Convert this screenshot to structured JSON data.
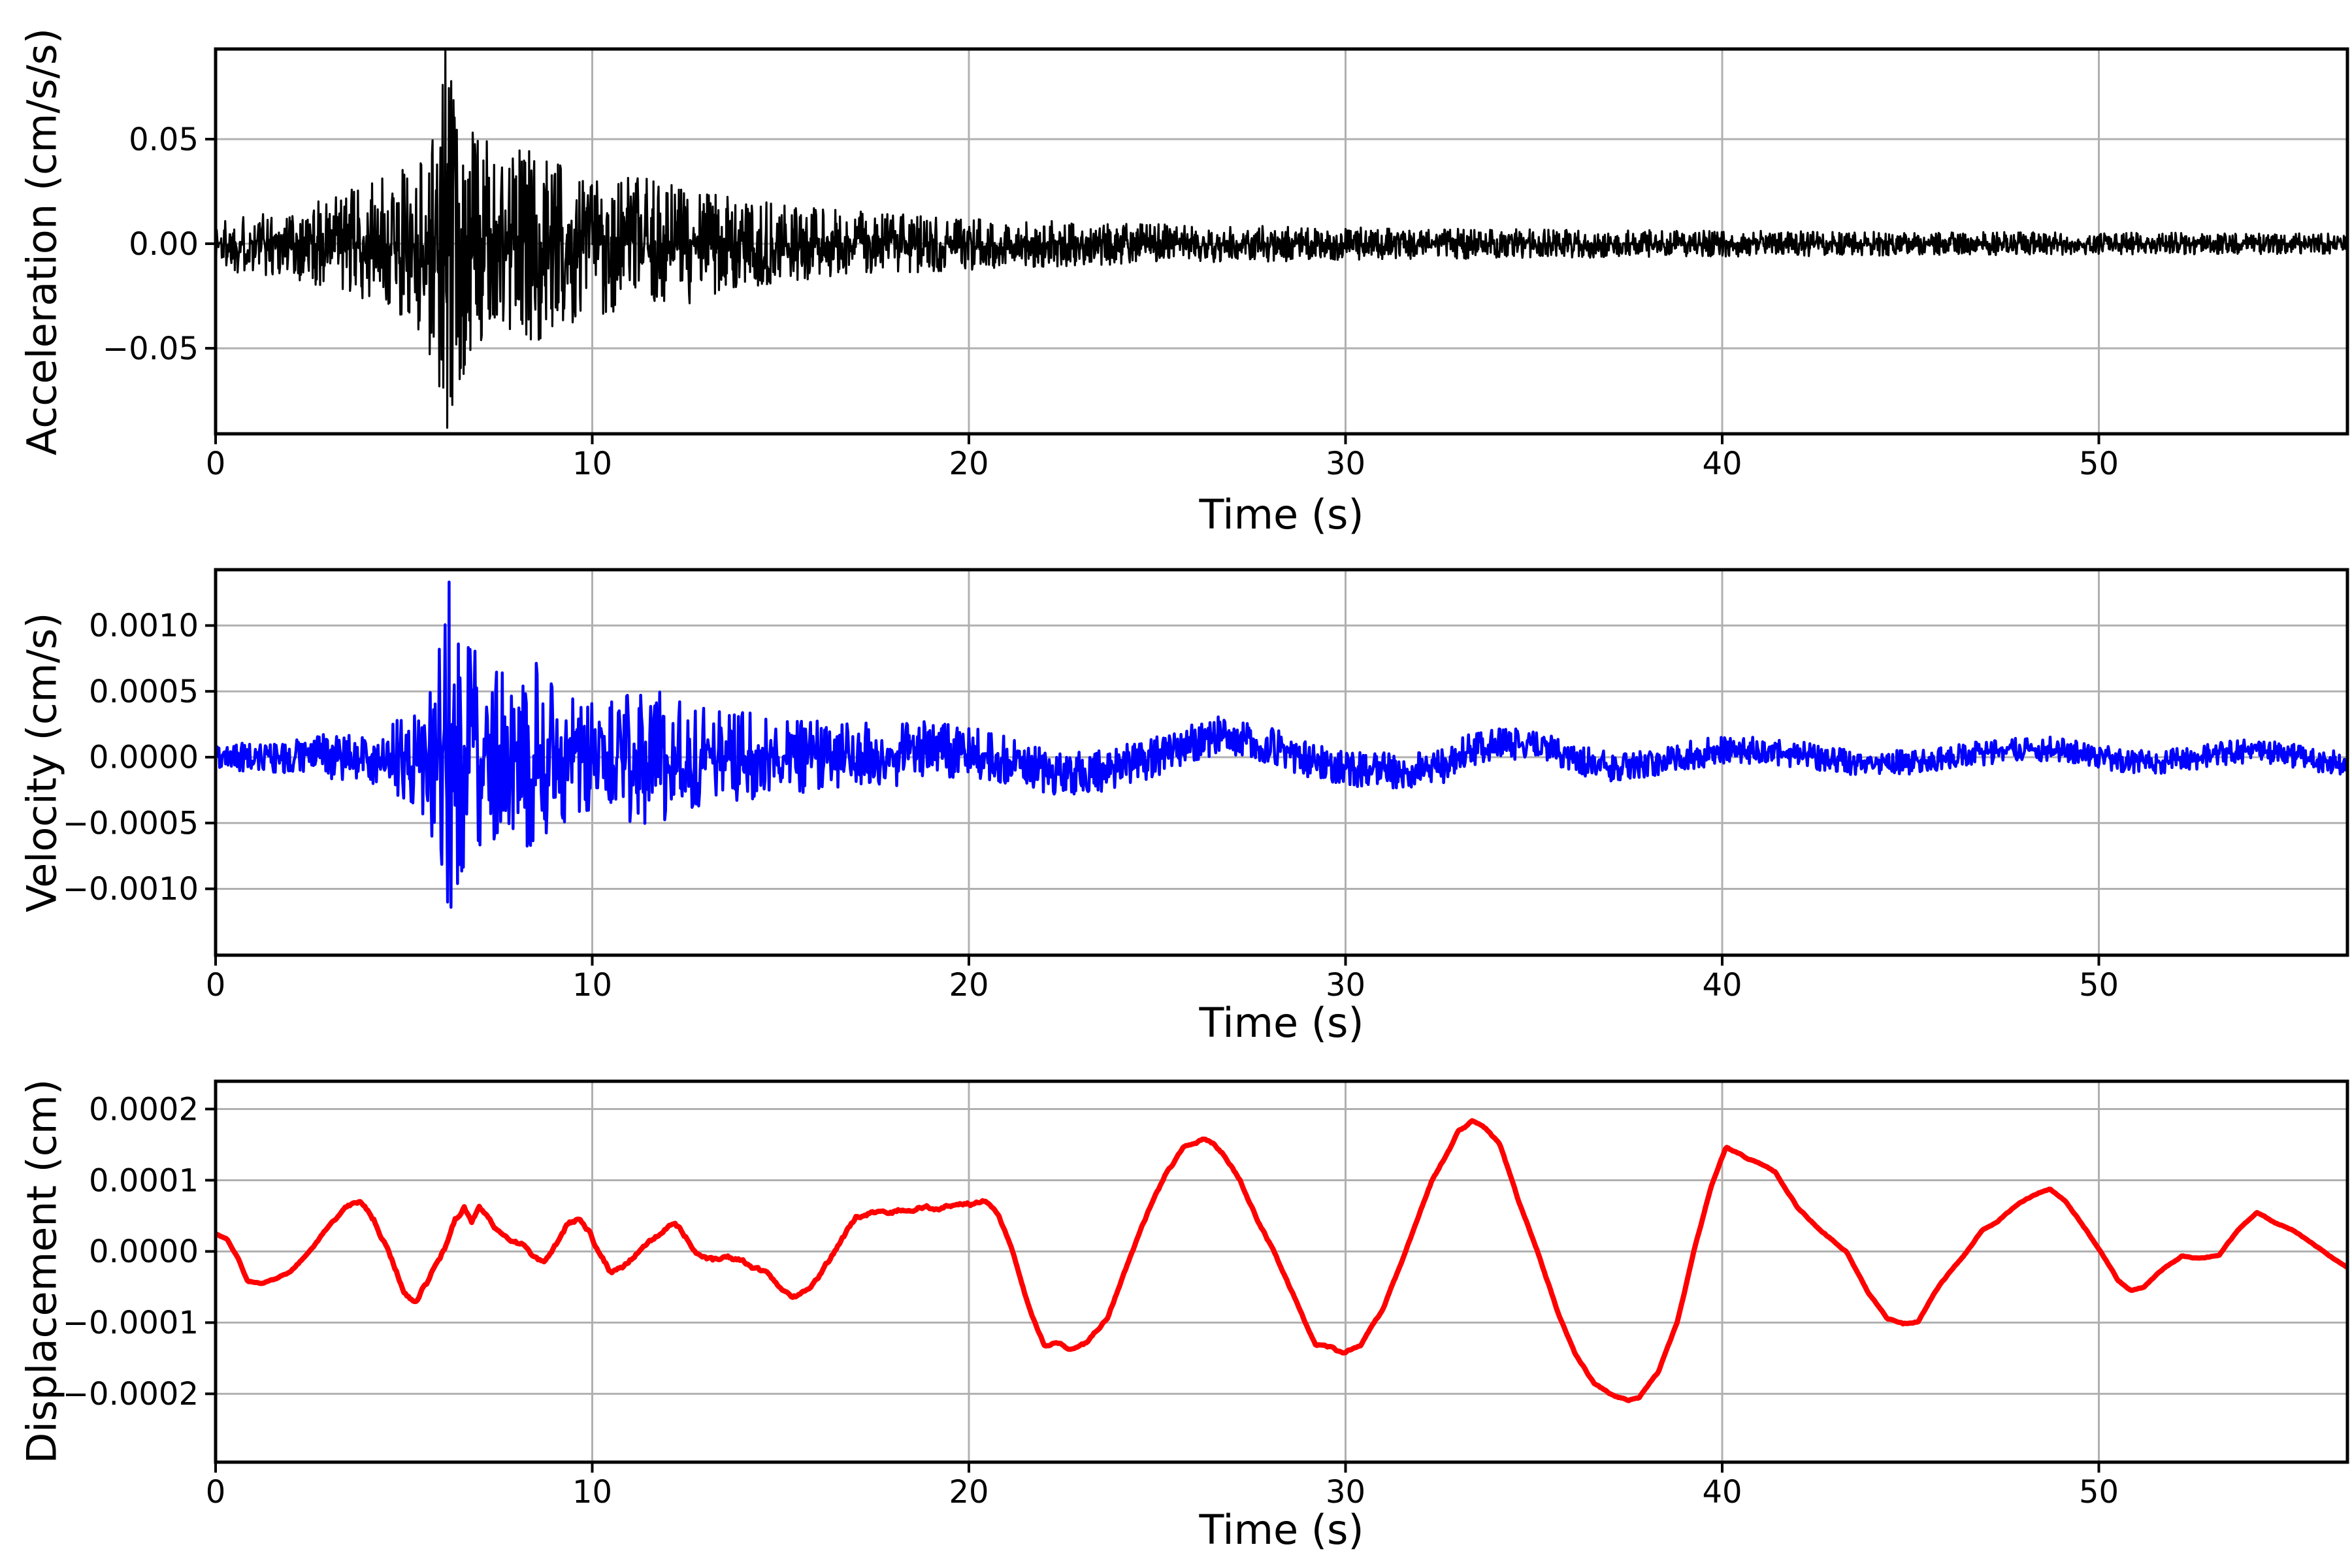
{
  "figure": {
    "background": "#ffffff",
    "description": "Three stacked seismogram panels: acceleration, velocity and displacement time histories of the same ground-motion record."
  },
  "chart_data": [
    {
      "type": "line",
      "series_name": "acceleration",
      "title": "",
      "xlabel": "Time (s)",
      "ylabel": "Acceleration (cm/s/s)",
      "color": "#000000",
      "line_width": 3.2,
      "grid": true,
      "grid_color": "#b0b0b0",
      "axis_color": "#000000",
      "legend_position": "none",
      "xlim": [
        0,
        56.6
      ],
      "ylim": [
        -0.0909,
        0.0931
      ],
      "xticks": [
        0,
        10,
        20,
        30,
        40,
        50
      ],
      "xtick_labels": [
        "0",
        "10",
        "20",
        "30",
        "40",
        "50"
      ],
      "yticks": [
        0.05,
        0.0,
        -0.05
      ],
      "ytick_labels": [
        "0.05",
        "0.00",
        "−0.05"
      ],
      "peak_positive": 0.092,
      "peak_negative": -0.088,
      "peak_time": 6.1,
      "signal": {
        "kind": "enveloped_noise",
        "dt": 0.015,
        "seed": 1337,
        "shape": 1.45,
        "envelope_t": [
          0,
          0.5,
          1,
          1.5,
          2,
          2.5,
          3,
          3.5,
          4,
          4.4,
          4.8,
          5.2,
          5.6,
          5.9,
          6.05,
          6.25,
          6.5,
          6.8,
          7.1,
          7.5,
          8.0,
          8.4,
          8.8,
          9.2,
          9.6,
          10,
          10.5,
          11,
          11.5,
          12,
          12.5,
          13,
          13.5,
          14,
          15,
          16,
          17,
          18,
          19,
          20,
          21,
          22,
          23,
          24,
          25,
          26,
          28,
          30,
          32,
          34,
          36,
          38,
          40,
          42,
          44,
          46,
          48,
          50,
          52,
          54,
          56.6
        ],
        "envelope_amp": [
          0.013,
          0.014,
          0.015,
          0.016,
          0.018,
          0.02,
          0.022,
          0.026,
          0.028,
          0.031,
          0.034,
          0.04,
          0.05,
          0.065,
          0.09,
          0.082,
          0.068,
          0.058,
          0.05,
          0.046,
          0.05,
          0.048,
          0.044,
          0.04,
          0.037,
          0.036,
          0.034,
          0.032,
          0.031,
          0.031,
          0.03,
          0.027,
          0.024,
          0.022,
          0.019,
          0.017,
          0.0155,
          0.0145,
          0.0135,
          0.0125,
          0.0115,
          0.011,
          0.0105,
          0.01,
          0.0095,
          0.009,
          0.0085,
          0.008,
          0.0075,
          0.007,
          0.0068,
          0.0065,
          0.0062,
          0.006,
          0.0058,
          0.0056,
          0.0055,
          0.0053,
          0.0052,
          0.005,
          0.005
        ],
        "mean_t": [
          0,
          56.6
        ],
        "mean_v": [
          0,
          0
        ]
      }
    },
    {
      "type": "line",
      "series_name": "velocity",
      "title": "",
      "xlabel": "Time (s)",
      "ylabel": "Velocity (cm/s)",
      "color": "#0000ff",
      "line_width": 4.5,
      "grid": true,
      "grid_color": "#b0b0b0",
      "axis_color": "#000000",
      "legend_position": "none",
      "xlim": [
        0,
        56.6
      ],
      "ylim": [
        -0.001504,
        0.001424
      ],
      "xticks": [
        0,
        10,
        20,
        30,
        40,
        50
      ],
      "xtick_labels": [
        "0",
        "10",
        "20",
        "30",
        "40",
        "50"
      ],
      "yticks": [
        0.001,
        0.0005,
        0.0,
        -0.0005,
        -0.001
      ],
      "ytick_labels": [
        "0.0010",
        "0.0005",
        "0.0000",
        "−0.0005",
        "−0.0010"
      ],
      "peak_positive": 0.00133,
      "peak_negative": -0.00114,
      "peak_time": 6.2,
      "signal": {
        "kind": "enveloped_noise",
        "dt": 0.022,
        "seed": 907,
        "shape": 1.35,
        "envelope_t": [
          0,
          1,
          2,
          2.8,
          3.5,
          4,
          4.5,
          5,
          5.5,
          5.9,
          6.15,
          6.45,
          6.8,
          7.2,
          7.6,
          8,
          8.5,
          9,
          9.5,
          10,
          10.5,
          11,
          11.4,
          12,
          12.6,
          13.4,
          14.5,
          15.5,
          17,
          18.5,
          20,
          22,
          24,
          26,
          28,
          30,
          32,
          34,
          36,
          38,
          40,
          42,
          44,
          46,
          48,
          50,
          52,
          54,
          56.6
        ],
        "envelope_amp": [
          0.0001,
          0.00011,
          0.00013,
          0.00018,
          0.00018,
          0.0002,
          0.00024,
          0.00032,
          0.0005,
          0.0008,
          0.00125,
          0.00105,
          0.00085,
          0.0007,
          0.00065,
          0.0006,
          0.00075,
          0.00055,
          0.00045,
          0.00042,
          0.00042,
          0.0005,
          0.00058,
          0.00048,
          0.0004,
          0.00035,
          0.00033,
          0.00028,
          0.00026,
          0.00024,
          0.0002,
          0.00017,
          0.00016,
          0.00015,
          0.00014,
          0.00013,
          0.00014,
          0.00012,
          0.00012,
          0.00011,
          0.00011,
          0.0001,
          0.0001,
          9e-05,
          0.0001,
          9e-05,
          9e-05,
          9e-05,
          9e-05
        ],
        "mean_t": [
          0,
          10,
          15,
          18,
          19,
          20,
          20.8,
          21.5,
          22.3,
          23.2,
          24.2,
          25.2,
          26,
          26.6,
          27.3,
          28,
          28.8,
          29.6,
          30.5,
          31.5,
          32.5,
          33.2,
          34,
          35,
          35.8,
          36.6,
          37.4,
          38.3,
          39.2,
          40,
          41,
          42,
          43,
          44,
          45,
          46,
          47,
          48,
          48.7,
          49.5,
          50.5,
          51.5,
          52.5,
          53.5,
          54.3,
          55,
          56,
          56.6
        ],
        "mean_v": [
          0,
          0,
          0,
          2e-05,
          5e-05,
          4e-05,
          0,
          -8e-05,
          -0.00012,
          -0.00012,
          -6e-05,
          3e-05,
          0.00012,
          0.00016,
          0.00015,
          9e-05,
          0,
          -7e-05,
          -0.0001,
          -0.0001,
          -8e-05,
          4e-05,
          0.0001,
          9e-05,
          2e-05,
          -6e-05,
          -8e-05,
          -4e-05,
          2e-05,
          5e-05,
          6e-05,
          2e-05,
          -2e-05,
          -5e-05,
          -4e-05,
          0,
          3e-05,
          6e-05,
          7e-05,
          4e-05,
          -2e-05,
          -4e-05,
          -1e-05,
          4e-05,
          5e-05,
          2e-05,
          -3e-05,
          -5e-05
        ]
      }
    },
    {
      "type": "line",
      "series_name": "displacement",
      "title": "",
      "xlabel": "Time (s)",
      "ylabel": "Displacement (cm)",
      "color": "#ff0000",
      "line_width": 8,
      "grid": true,
      "grid_color": "#b0b0b0",
      "axis_color": "#000000",
      "legend_position": "none",
      "xlim": [
        0,
        56.6
      ],
      "ylim": [
        -0.000296,
        0.000239
      ],
      "xticks": [
        0,
        10,
        20,
        30,
        40,
        50
      ],
      "xtick_labels": [
        "0",
        "10",
        "20",
        "30",
        "40",
        "50"
      ],
      "yticks": [
        0.0002,
        0.0001,
        0.0,
        -0.0001,
        -0.0002
      ],
      "ytick_labels": [
        "0.0002",
        "0.0001",
        "0.0000",
        "−0.0001",
        "−0.0002"
      ],
      "peak_positive": 0.000182,
      "peak_negative": -0.00021,
      "peak_time": 33.35,
      "signal": {
        "kind": "points_with_wiggle",
        "dt": 0.04,
        "seed": 555,
        "value_scale": 0.0001,
        "points_t": [
          0,
          0.3,
          0.6,
          0.85,
          1.2,
          1.55,
          2.0,
          2.5,
          3.0,
          3.5,
          3.85,
          4.2,
          4.6,
          5.0,
          5.3,
          5.6,
          6.1,
          6.35,
          6.6,
          6.8,
          7.0,
          7.2,
          7.4,
          7.8,
          8.2,
          8.45,
          8.7,
          9.0,
          9.3,
          9.6,
          9.9,
          10.15,
          10.5,
          10.8,
          11.3,
          11.9,
          12.2,
          12.5,
          12.9,
          13.2,
          13.6,
          14.0,
          14.7,
          15.3,
          15.6,
          16.1,
          16.5,
          17.0,
          17.4,
          17.8,
          18.2,
          18.7,
          19.2,
          19.7,
          20.1,
          20.45,
          20.8,
          21.15,
          21.6,
          22.0,
          22.4,
          22.7,
          23.1,
          23.7,
          24.35,
          24.8,
          25.2,
          25.7,
          26.0,
          26.2,
          26.5,
          26.8,
          27.2,
          27.7,
          28.1,
          28.6,
          29.2,
          29.6,
          29.9,
          30.4,
          31.0,
          31.6,
          32.3,
          33.0,
          33.35,
          33.7,
          34.1,
          34.6,
          35.1,
          35.6,
          36.1,
          36.6,
          37.1,
          37.5,
          37.8,
          38.3,
          38.8,
          39.25,
          39.7,
          40.1,
          40.5,
          40.9,
          41.4,
          42.0,
          42.6,
          43.3,
          43.9,
          44.4,
          44.8,
          45.2,
          45.8,
          46.5,
          46.9,
          47.3,
          47.9,
          48.4,
          48.7,
          49.1,
          49.6,
          50.05,
          50.5,
          50.85,
          51.2,
          51.7,
          52.2,
          52.7,
          53.2,
          53.7,
          54.2,
          54.6,
          55.2,
          55.7,
          56.1,
          56.6
        ],
        "points_v": [
          0.25,
          0.18,
          -0.1,
          -0.42,
          -0.45,
          -0.4,
          -0.28,
          0.0,
          0.35,
          0.62,
          0.72,
          0.45,
          0.0,
          -0.55,
          -0.7,
          -0.45,
          0.05,
          0.45,
          0.6,
          0.42,
          0.65,
          0.5,
          0.32,
          0.12,
          0.1,
          -0.1,
          -0.18,
          0.05,
          0.35,
          0.45,
          0.3,
          0.0,
          -0.3,
          -0.22,
          0.05,
          0.3,
          0.42,
          0.2,
          -0.1,
          -0.15,
          -0.08,
          -0.12,
          -0.35,
          -0.68,
          -0.6,
          -0.3,
          0.05,
          0.48,
          0.55,
          0.5,
          0.58,
          0.62,
          0.6,
          0.68,
          0.66,
          0.73,
          0.5,
          0.0,
          -0.8,
          -1.33,
          -1.28,
          -1.38,
          -1.3,
          -0.9,
          0.0,
          0.6,
          1.05,
          1.45,
          1.5,
          1.56,
          1.52,
          1.35,
          1.0,
          0.4,
          0.0,
          -0.6,
          -1.3,
          -1.35,
          -1.42,
          -1.32,
          -0.8,
          0.0,
          1.0,
          1.68,
          1.82,
          1.72,
          1.5,
          0.7,
          0.0,
          -0.8,
          -1.45,
          -1.85,
          -2.02,
          -2.1,
          -2.05,
          -1.7,
          -1.0,
          0.0,
          0.9,
          1.45,
          1.35,
          1.25,
          1.12,
          0.62,
          0.3,
          0.0,
          -0.6,
          -0.95,
          -1.02,
          -0.98,
          -0.45,
          0.0,
          0.3,
          0.42,
          0.68,
          0.82,
          0.88,
          0.72,
          0.35,
          0.0,
          -0.4,
          -0.55,
          -0.5,
          -0.25,
          -0.07,
          -0.1,
          -0.05,
          0.3,
          0.55,
          0.42,
          0.28,
          0.1,
          -0.05,
          -0.22
        ],
        "wiggle_t": [
          0,
          3,
          4,
          6,
          8,
          12,
          16,
          20,
          21,
          24,
          30,
          36,
          40,
          44,
          48,
          52,
          56.6
        ],
        "wiggle_amp": [
          0.01,
          0.02,
          0.05,
          0.06,
          0.05,
          0.05,
          0.05,
          0.04,
          0.03,
          0.03,
          0.025,
          0.02,
          0.015,
          0.015,
          0.012,
          0.012,
          0.01
        ]
      }
    }
  ]
}
